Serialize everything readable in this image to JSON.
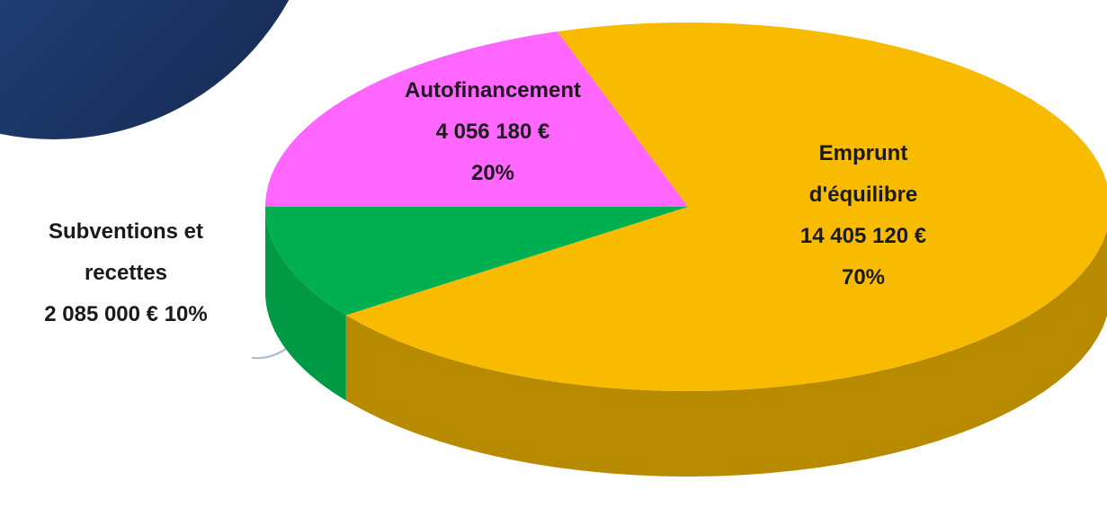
{
  "chart_data": {
    "type": "pie",
    "categories": [
      "Emprunt d'équilibre",
      "Subventions et recettes",
      "Autofinancement"
    ],
    "values": [
      14405120,
      2085000,
      4056180
    ],
    "value_labels": [
      "14 405 120 €",
      "2 085 000 €",
      "4 056 180 €"
    ],
    "percents": [
      70,
      10,
      20
    ],
    "percent_labels": [
      "70%",
      "10%",
      "20%"
    ],
    "colors": [
      "#f9bb00",
      "#00b050",
      "#ff66ff"
    ],
    "side_colors": [
      "#b88a00",
      "#009a45",
      "#c040c0"
    ]
  }
}
